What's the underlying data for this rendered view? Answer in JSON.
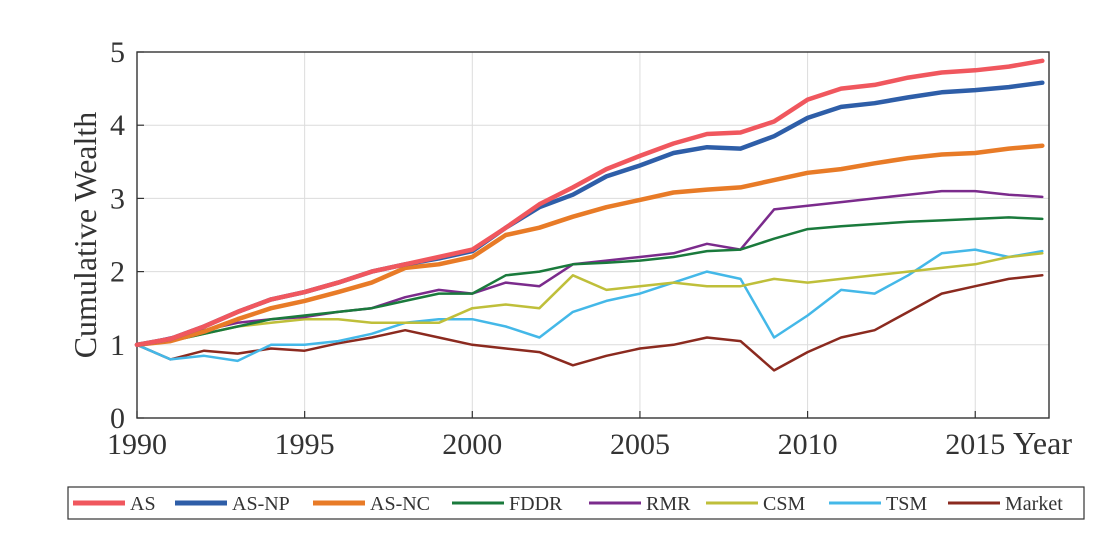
{
  "chart_data": {
    "type": "line",
    "title": "",
    "xlabel": "Year",
    "ylabel": "Cumulative Wealth",
    "xlim": [
      1990,
      2017.2
    ],
    "ylim": [
      0,
      5
    ],
    "x_ticks": [
      1990,
      1995,
      2000,
      2005,
      2010,
      2015
    ],
    "x_tick_labels": [
      "1990",
      "1995",
      "2000",
      "2005",
      "2010",
      "2015"
    ],
    "y_ticks": [
      0,
      1,
      2,
      3,
      4,
      5
    ],
    "y_tick_labels": [
      "0",
      "1",
      "2",
      "3",
      "4",
      "5"
    ],
    "grid": true,
    "legend_position": "bottom",
    "x": [
      1990,
      1991,
      1992,
      1993,
      1994,
      1995,
      1996,
      1997,
      1998,
      1999,
      2000,
      2001,
      2002,
      2003,
      2004,
      2005,
      2006,
      2007,
      2008,
      2009,
      2010,
      2011,
      2012,
      2013,
      2014,
      2015,
      2016,
      2017
    ],
    "series": [
      {
        "name": "AS",
        "color": "#f0575e",
        "width": 4.5,
        "values": [
          1.0,
          1.08,
          1.25,
          1.45,
          1.62,
          1.72,
          1.85,
          2.0,
          2.1,
          2.2,
          2.3,
          2.6,
          2.92,
          3.15,
          3.4,
          3.58,
          3.75,
          3.88,
          3.9,
          4.05,
          4.35,
          4.5,
          4.55,
          4.65,
          4.72,
          4.75,
          4.8,
          4.88
        ]
      },
      {
        "name": "AS-NP",
        "color": "#2e5ea8",
        "width": 4.5,
        "values": [
          1.0,
          1.08,
          1.25,
          1.45,
          1.62,
          1.72,
          1.85,
          2.0,
          2.1,
          2.18,
          2.28,
          2.6,
          2.88,
          3.05,
          3.3,
          3.45,
          3.62,
          3.7,
          3.68,
          3.85,
          4.1,
          4.25,
          4.3,
          4.38,
          4.45,
          4.48,
          4.52,
          4.58
        ]
      },
      {
        "name": "AS-NC",
        "color": "#e87b27",
        "width": 4.5,
        "values": [
          1.0,
          1.05,
          1.18,
          1.35,
          1.5,
          1.6,
          1.72,
          1.85,
          2.05,
          2.1,
          2.2,
          2.5,
          2.6,
          2.75,
          2.88,
          2.98,
          3.08,
          3.12,
          3.15,
          3.25,
          3.35,
          3.4,
          3.48,
          3.55,
          3.6,
          3.62,
          3.68,
          3.72
        ]
      },
      {
        "name": "FDDR",
        "color": "#1a7a3c",
        "width": 2.5,
        "values": [
          1.0,
          1.05,
          1.15,
          1.25,
          1.35,
          1.4,
          1.45,
          1.5,
          1.6,
          1.7,
          1.7,
          1.95,
          2.0,
          2.1,
          2.12,
          2.15,
          2.2,
          2.28,
          2.3,
          2.45,
          2.58,
          2.62,
          2.65,
          2.68,
          2.7,
          2.72,
          2.74,
          2.72
        ]
      },
      {
        "name": "RMR",
        "color": "#7b2b8c",
        "width": 2.5,
        "values": [
          1.0,
          1.1,
          1.2,
          1.3,
          1.35,
          1.38,
          1.45,
          1.5,
          1.65,
          1.75,
          1.7,
          1.85,
          1.8,
          2.1,
          2.15,
          2.2,
          2.25,
          2.38,
          2.3,
          2.85,
          2.9,
          2.95,
          3.0,
          3.05,
          3.1,
          3.1,
          3.05,
          3.02
        ]
      },
      {
        "name": "CSM",
        "color": "#bfbf3a",
        "width": 2.5,
        "values": [
          1.0,
          1.05,
          1.15,
          1.25,
          1.3,
          1.35,
          1.35,
          1.3,
          1.3,
          1.3,
          1.5,
          1.55,
          1.5,
          1.95,
          1.75,
          1.8,
          1.85,
          1.8,
          1.8,
          1.9,
          1.85,
          1.9,
          1.95,
          2.0,
          2.05,
          2.1,
          2.2,
          2.25
        ]
      },
      {
        "name": "TSM",
        "color": "#44b8e8",
        "width": 2.5,
        "values": [
          1.0,
          0.8,
          0.85,
          0.78,
          1.0,
          1.0,
          1.05,
          1.15,
          1.3,
          1.35,
          1.35,
          1.25,
          1.1,
          1.45,
          1.6,
          1.7,
          1.85,
          2.0,
          1.9,
          1.1,
          1.4,
          1.75,
          1.7,
          1.95,
          2.25,
          2.3,
          2.2,
          2.28
        ]
      },
      {
        "name": "Market",
        "color": "#8b2a1f",
        "width": 2.5,
        "values": [
          1.0,
          0.8,
          0.92,
          0.88,
          0.95,
          0.92,
          1.02,
          1.1,
          1.2,
          1.1,
          1.0,
          0.95,
          0.9,
          0.72,
          0.85,
          0.95,
          1.0,
          1.1,
          1.05,
          0.65,
          0.9,
          1.1,
          1.2,
          1.45,
          1.7,
          1.8,
          1.9,
          1.95
        ]
      }
    ]
  }
}
